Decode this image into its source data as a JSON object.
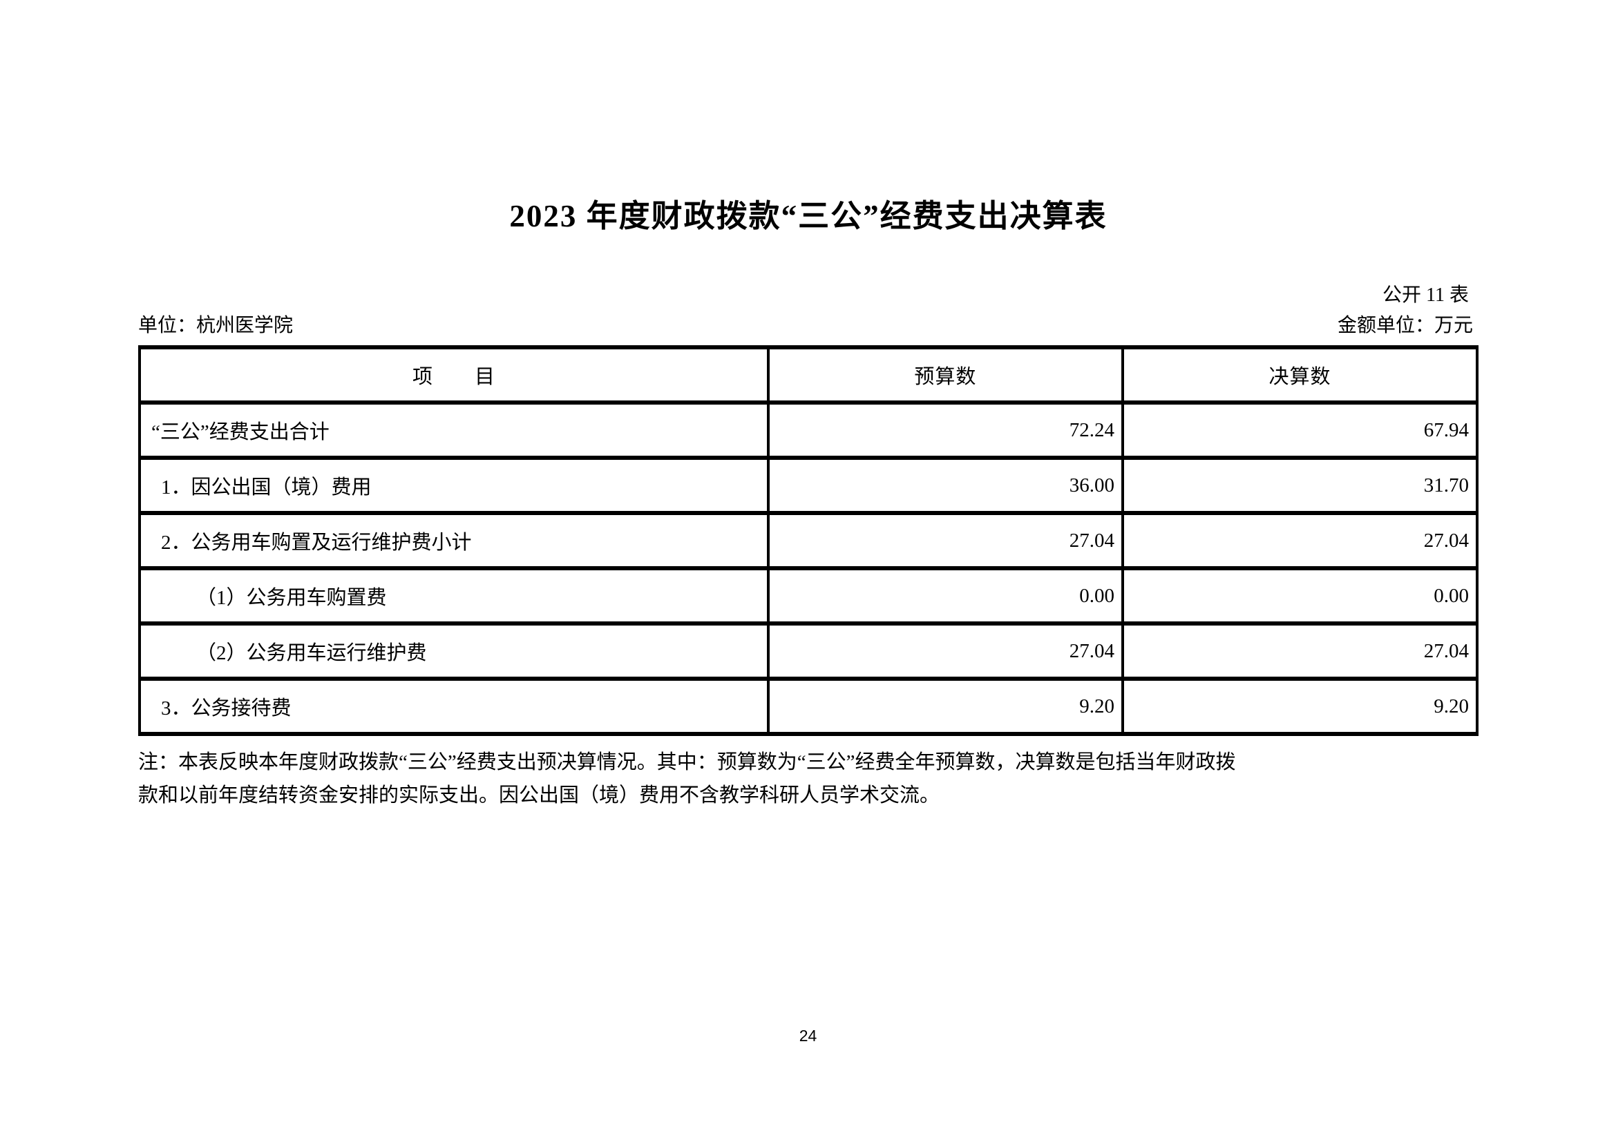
{
  "page": {
    "title": "2023 年度财政拨款“三公”经费支出决算表",
    "table_code": "公开 11 表",
    "unit_label": "单位：杭州医学院",
    "amount_unit_label": "金额单位：万元",
    "note_line1": "注：本表反映本年度财政拨款“三公”经费支出预决算情况。其中：预算数为“三公”经费全年预算数，决算数是包括当年财政拨",
    "note_line2": "款和以前年度结转资金安排的实际支出。因公出国（境）费用不含教学科研人员学术交流。",
    "page_number": "24"
  },
  "table": {
    "headers": [
      "项　　目",
      "预算数",
      "决算数"
    ],
    "rows": [
      {
        "item": "“三公”经费支出合计",
        "budget": "72.24",
        "final": "67.94",
        "indent": 0
      },
      {
        "item": "1．因公出国（境）费用",
        "budget": "36.00",
        "final": "31.70",
        "indent": 1
      },
      {
        "item": "2．公务用车购置及运行维护费小计",
        "budget": "27.04",
        "final": "27.04",
        "indent": 1
      },
      {
        "item": "（1）公务用车购置费",
        "budget": "0.00",
        "final": "0.00",
        "indent": 2
      },
      {
        "item": "（2）公务用车运行维护费",
        "budget": "27.04",
        "final": "27.04",
        "indent": 2
      },
      {
        "item": "3．公务接待费",
        "budget": "9.20",
        "final": "9.20",
        "indent": 1
      }
    ]
  },
  "colors": {
    "text": "#000000",
    "background": "#ffffff",
    "border": "#000000"
  }
}
